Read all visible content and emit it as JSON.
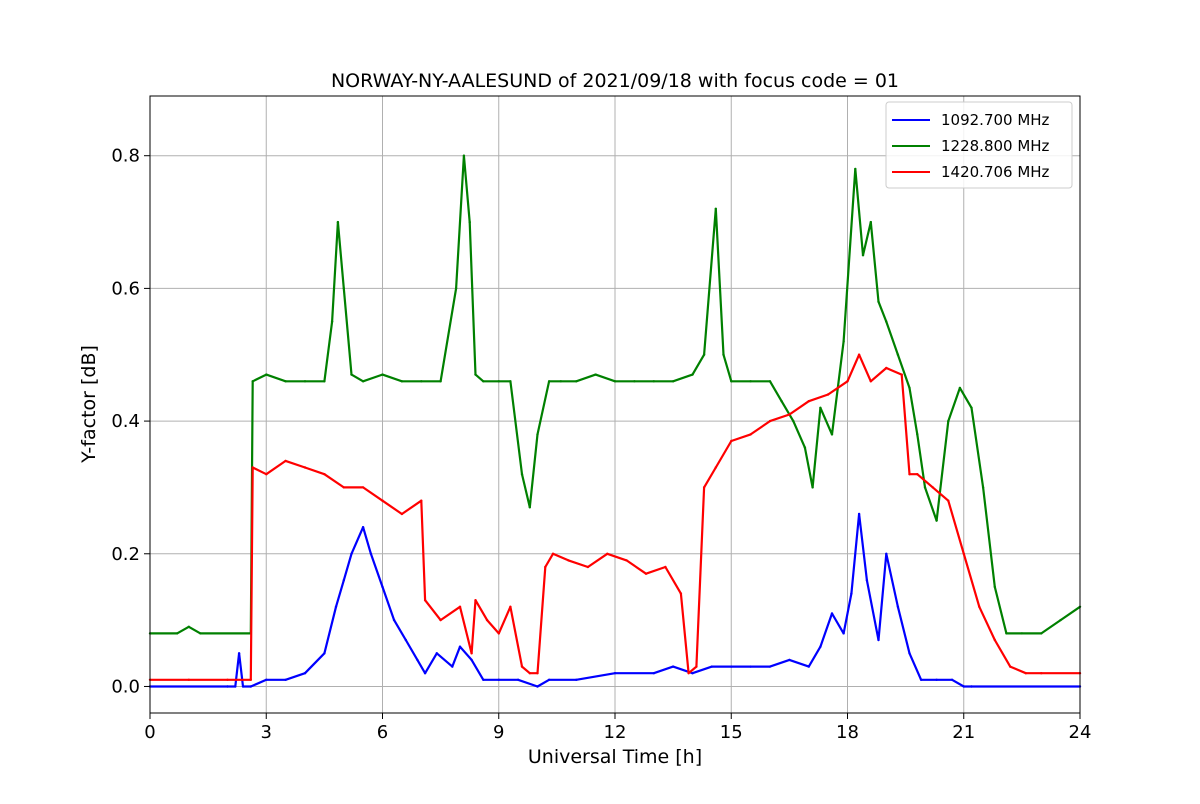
{
  "chart_data": {
    "type": "line",
    "title": "NORWAY-NY-AALESUND of 2021/09/18 with focus code = 01",
    "xlabel": "Universal Time [h]",
    "ylabel": "Y-factor [dB]",
    "xlim": [
      0,
      24
    ],
    "ylim": [
      -0.04,
      0.89
    ],
    "xticks": [
      0,
      3,
      6,
      9,
      12,
      15,
      18,
      21,
      24
    ],
    "yticks": [
      0.0,
      0.2,
      0.4,
      0.6,
      0.8
    ],
    "ytick_labels": [
      "0.0",
      "0.2",
      "0.4",
      "0.6",
      "0.8"
    ],
    "grid": true,
    "legend_position": "top-right",
    "series": [
      {
        "name": "1092.700 MHz",
        "color": "#0000ff",
        "x": [
          0,
          2.0,
          2.2,
          2.3,
          2.4,
          2.6,
          3.0,
          3.5,
          4.0,
          4.5,
          4.8,
          5.0,
          5.2,
          5.5,
          5.7,
          6.0,
          6.3,
          6.6,
          6.9,
          7.1,
          7.4,
          7.8,
          8.0,
          8.3,
          8.6,
          9.0,
          9.5,
          10.0,
          10.3,
          11.0,
          12.0,
          13.0,
          13.5,
          14.0,
          14.5,
          15.0,
          15.5,
          16.0,
          16.5,
          17.0,
          17.3,
          17.6,
          17.9,
          18.1,
          18.3,
          18.5,
          18.8,
          19.0,
          19.3,
          19.6,
          19.9,
          20.3,
          20.7,
          21.0,
          21.2,
          24
        ],
        "y": [
          0.0,
          0.0,
          0.0,
          0.05,
          0.0,
          0.0,
          0.01,
          0.01,
          0.02,
          0.05,
          0.12,
          0.16,
          0.2,
          0.24,
          0.2,
          0.15,
          0.1,
          0.07,
          0.04,
          0.02,
          0.05,
          0.03,
          0.06,
          0.04,
          0.01,
          0.01,
          0.01,
          0.0,
          0.01,
          0.01,
          0.02,
          0.02,
          0.03,
          0.02,
          0.03,
          0.03,
          0.03,
          0.03,
          0.04,
          0.03,
          0.06,
          0.11,
          0.08,
          0.14,
          0.26,
          0.16,
          0.07,
          0.2,
          0.12,
          0.05,
          0.01,
          0.01,
          0.01,
          0.0,
          0.0,
          0.0
        ]
      },
      {
        "name": "1228.800 MHz",
        "color": "#008000",
        "x": [
          0,
          0.7,
          1.0,
          1.3,
          2.6,
          2.65,
          3.0,
          3.5,
          4.0,
          4.5,
          4.7,
          4.85,
          5.0,
          5.2,
          5.5,
          6.0,
          6.5,
          7.0,
          7.5,
          7.9,
          8.1,
          8.25,
          8.4,
          8.6,
          9.0,
          9.3,
          9.6,
          9.8,
          10.0,
          10.3,
          10.6,
          11.0,
          11.5,
          12.0,
          12.5,
          13.0,
          13.5,
          14.0,
          14.3,
          14.6,
          14.8,
          15.0,
          15.5,
          16.0,
          16.3,
          16.6,
          16.9,
          17.1,
          17.3,
          17.6,
          17.9,
          18.2,
          18.4,
          18.6,
          18.8,
          19.0,
          19.3,
          19.6,
          19.8,
          20.0,
          20.3,
          20.6,
          20.9,
          21.2,
          21.5,
          21.8,
          22.1,
          22.5,
          23.0,
          23.5,
          24
        ],
        "y": [
          0.08,
          0.08,
          0.09,
          0.08,
          0.08,
          0.46,
          0.47,
          0.46,
          0.46,
          0.46,
          0.55,
          0.7,
          0.6,
          0.47,
          0.46,
          0.47,
          0.46,
          0.46,
          0.46,
          0.6,
          0.8,
          0.7,
          0.47,
          0.46,
          0.46,
          0.46,
          0.32,
          0.27,
          0.38,
          0.46,
          0.46,
          0.46,
          0.47,
          0.46,
          0.46,
          0.46,
          0.46,
          0.47,
          0.5,
          0.72,
          0.5,
          0.46,
          0.46,
          0.46,
          0.43,
          0.4,
          0.36,
          0.3,
          0.42,
          0.38,
          0.52,
          0.78,
          0.65,
          0.7,
          0.58,
          0.55,
          0.5,
          0.45,
          0.38,
          0.3,
          0.25,
          0.4,
          0.45,
          0.42,
          0.3,
          0.15,
          0.08,
          0.08,
          0.08,
          0.1,
          0.12
        ]
      },
      {
        "name": "1420.706 MHz",
        "color": "#ff0000",
        "x": [
          0,
          1.0,
          2.0,
          2.6,
          2.65,
          3.0,
          3.5,
          4.0,
          4.5,
          5.0,
          5.5,
          6.0,
          6.5,
          7.0,
          7.1,
          7.5,
          8.0,
          8.3,
          8.4,
          8.7,
          9.0,
          9.3,
          9.6,
          9.8,
          10.0,
          10.2,
          10.4,
          10.8,
          11.3,
          11.8,
          12.3,
          12.8,
          13.3,
          13.7,
          13.9,
          14.1,
          14.3,
          14.6,
          15.0,
          15.5,
          16.0,
          16.5,
          17.0,
          17.5,
          18.0,
          18.3,
          18.6,
          19.0,
          19.4,
          19.6,
          19.8,
          20.2,
          20.6,
          21.0,
          21.4,
          21.8,
          22.2,
          22.6,
          23.0,
          24
        ],
        "y": [
          0.01,
          0.01,
          0.01,
          0.01,
          0.33,
          0.32,
          0.34,
          0.33,
          0.32,
          0.3,
          0.3,
          0.28,
          0.26,
          0.28,
          0.13,
          0.1,
          0.12,
          0.05,
          0.13,
          0.1,
          0.08,
          0.12,
          0.03,
          0.02,
          0.02,
          0.18,
          0.2,
          0.19,
          0.18,
          0.2,
          0.19,
          0.17,
          0.18,
          0.14,
          0.02,
          0.03,
          0.3,
          0.33,
          0.37,
          0.38,
          0.4,
          0.41,
          0.43,
          0.44,
          0.46,
          0.5,
          0.46,
          0.48,
          0.47,
          0.32,
          0.32,
          0.3,
          0.28,
          0.2,
          0.12,
          0.07,
          0.03,
          0.02,
          0.02,
          0.02
        ]
      }
    ]
  }
}
